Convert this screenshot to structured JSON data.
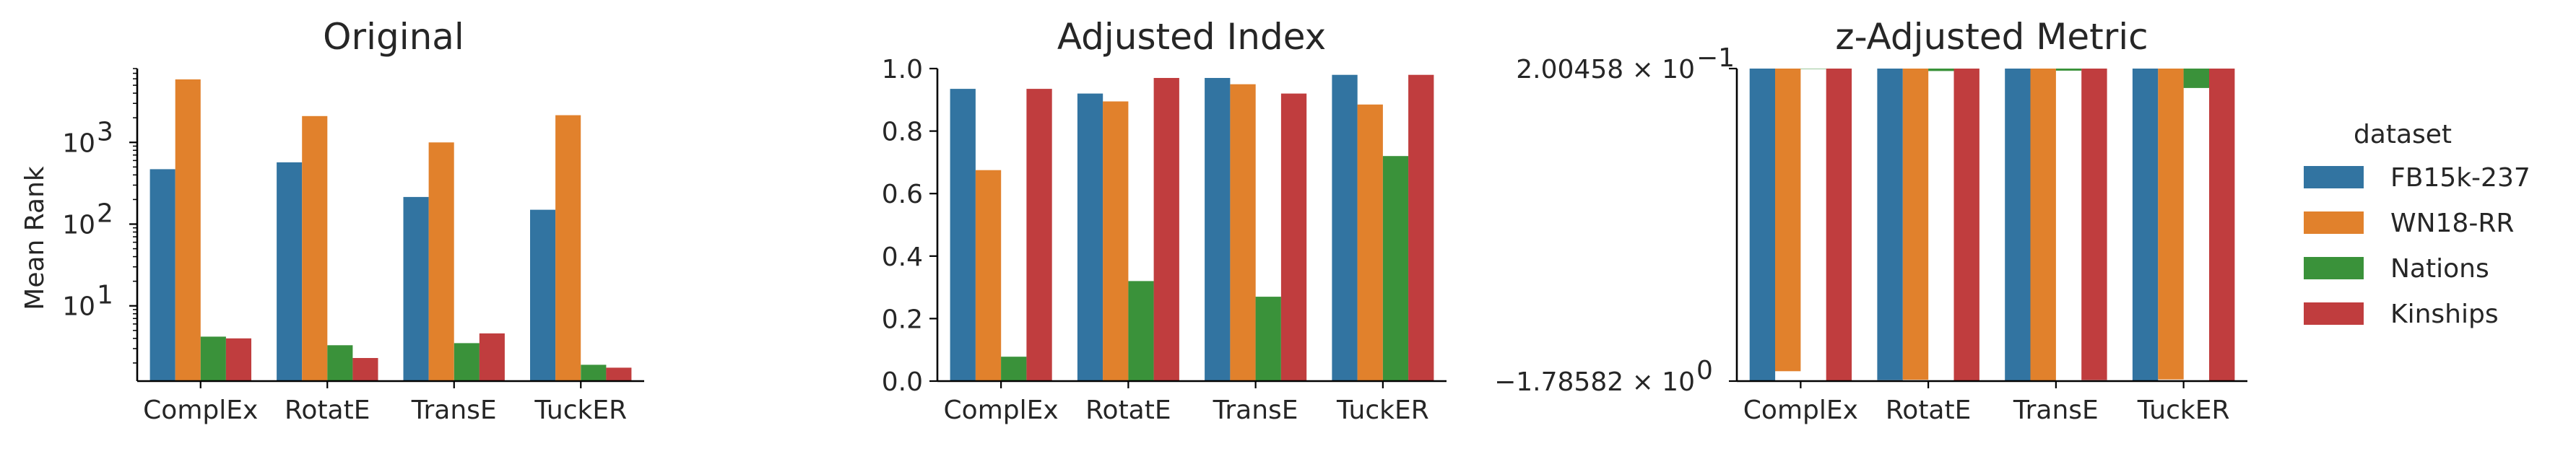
{
  "colors": {
    "FB15k-237": "#3274a1",
    "WN18-RR": "#e1812c",
    "Nations": "#3a923a",
    "Kinships": "#c03d3e"
  },
  "legend": {
    "title": "dataset",
    "placement": "right",
    "entries": [
      "FB15k-237",
      "WN18-RR",
      "Nations",
      "Kinships"
    ]
  },
  "chart_data": [
    {
      "type": "bar",
      "title": "Original",
      "xlabel": "",
      "ylabel": "Mean Rank",
      "yscale": "log",
      "ylim": [
        1.2,
        8000
      ],
      "yticks": [
        {
          "value": 10,
          "base": "10",
          "exp": "1"
        },
        {
          "value": 100,
          "base": "10",
          "exp": "2"
        },
        {
          "value": 1000,
          "base": "10",
          "exp": "3"
        }
      ],
      "categories": [
        "ComplEx",
        "RotatE",
        "TransE",
        "TuckER"
      ],
      "series": [
        {
          "name": "FB15k-237",
          "values": [
            470,
            570,
            215,
            150
          ]
        },
        {
          "name": "WN18-RR",
          "values": [
            5900,
            2100,
            1000,
            2150
          ]
        },
        {
          "name": "Nations",
          "values": [
            4.2,
            3.3,
            3.5,
            1.9
          ]
        },
        {
          "name": "Kinships",
          "values": [
            4.0,
            2.3,
            4.6,
            1.75
          ]
        }
      ]
    },
    {
      "type": "bar",
      "title": "Adjusted Index",
      "xlabel": "",
      "ylabel": "",
      "ylim": [
        0,
        1.0
      ],
      "yticks": [
        {
          "value": 0,
          "label": "0.0"
        },
        {
          "value": 0.2,
          "label": "0.2"
        },
        {
          "value": 0.4,
          "label": "0.4"
        },
        {
          "value": 0.6,
          "label": "0.6"
        },
        {
          "value": 0.8,
          "label": "0.8"
        },
        {
          "value": 1.0,
          "label": "1.0"
        }
      ],
      "categories": [
        "ComplEx",
        "RotatE",
        "TransE",
        "TuckER"
      ],
      "series": [
        {
          "name": "FB15k-237",
          "values": [
            0.935,
            0.92,
            0.97,
            0.98
          ]
        },
        {
          "name": "WN18-RR",
          "values": [
            0.675,
            0.895,
            0.95,
            0.885
          ]
        },
        {
          "name": "Nations",
          "values": [
            0.078,
            0.32,
            0.27,
            0.72
          ]
        },
        {
          "name": "Kinships",
          "values": [
            0.935,
            0.97,
            0.92,
            0.98
          ]
        }
      ]
    },
    {
      "type": "bar",
      "title": "z-Adjusted Metric",
      "xlabel": "",
      "ylabel": "",
      "yscale": "symlog",
      "ylim": [
        -1.78582,
        0.200458
      ],
      "yticks": [
        {
          "value": 0.200458,
          "mantissa": "2.00458",
          "exp": "−1"
        },
        {
          "value": -1.78582,
          "mantissa": "−1.78582",
          "exp": "0"
        }
      ],
      "categories": [
        "ComplEx",
        "RotatE",
        "TransE",
        "TuckER"
      ],
      "series": [
        {
          "name": "FB15k-237",
          "values": [
            -1.745,
            -1.715,
            -1.765,
            -1.775
          ]
        },
        {
          "name": "WN18-RR",
          "values": [
            -1.19,
            -1.69,
            -1.75,
            -1.67
          ]
        },
        {
          "name": "Nations",
          "values": [
            0.198,
            0.181,
            0.184,
            0.09
          ]
        },
        {
          "name": "Kinships",
          "values": [
            -1.74,
            -1.76,
            -1.71,
            -1.77
          ]
        }
      ]
    }
  ]
}
